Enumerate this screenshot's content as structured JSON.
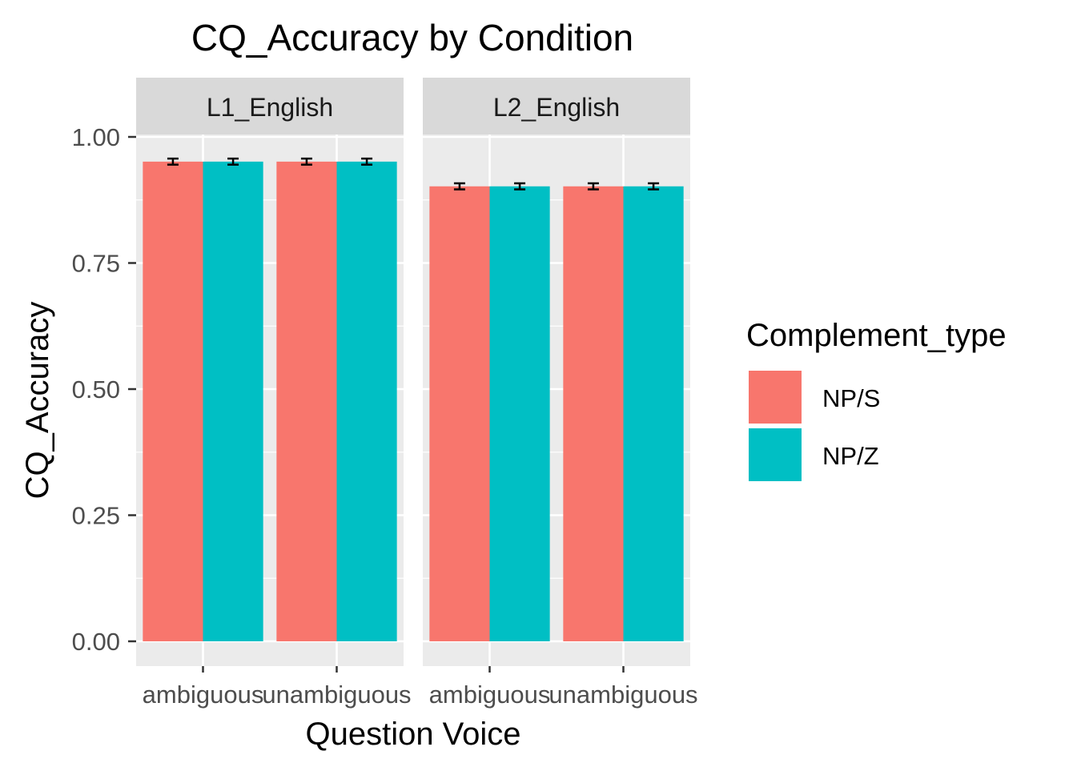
{
  "chart_data": {
    "type": "bar",
    "title": "CQ_Accuracy by Condition",
    "xlabel": "Question Voice",
    "ylabel": "CQ_Accuracy",
    "ylim": [
      0,
      1.05
    ],
    "y_ticks": [
      "0.00",
      "0.25",
      "0.50",
      "0.75",
      "1.00"
    ],
    "y_tick_values": [
      0,
      0.25,
      0.5,
      0.75,
      1.0
    ],
    "grid": true,
    "legend": {
      "title": "Complement_type",
      "placement": "right",
      "entries": [
        "NP/S",
        "NP/Z"
      ]
    },
    "colors": {
      "NP/S": "#F8766D",
      "NP/Z": "#00BFC4"
    },
    "categories": [
      "ambiguous",
      "unambiguous"
    ],
    "panels": [
      {
        "label": "L1_English",
        "series": [
          {
            "name": "NP/S",
            "values": [
              0.951,
              0.951
            ],
            "error": [
              0.006,
              0.006
            ]
          },
          {
            "name": "NP/Z",
            "values": [
              0.951,
              0.951
            ],
            "error": [
              0.006,
              0.006
            ]
          }
        ]
      },
      {
        "label": "L2_English",
        "series": [
          {
            "name": "NP/S",
            "values": [
              0.902,
              0.902
            ],
            "error": [
              0.006,
              0.006
            ]
          },
          {
            "name": "NP/Z",
            "values": [
              0.902,
              0.902
            ],
            "error": [
              0.006,
              0.006
            ]
          }
        ]
      }
    ]
  }
}
